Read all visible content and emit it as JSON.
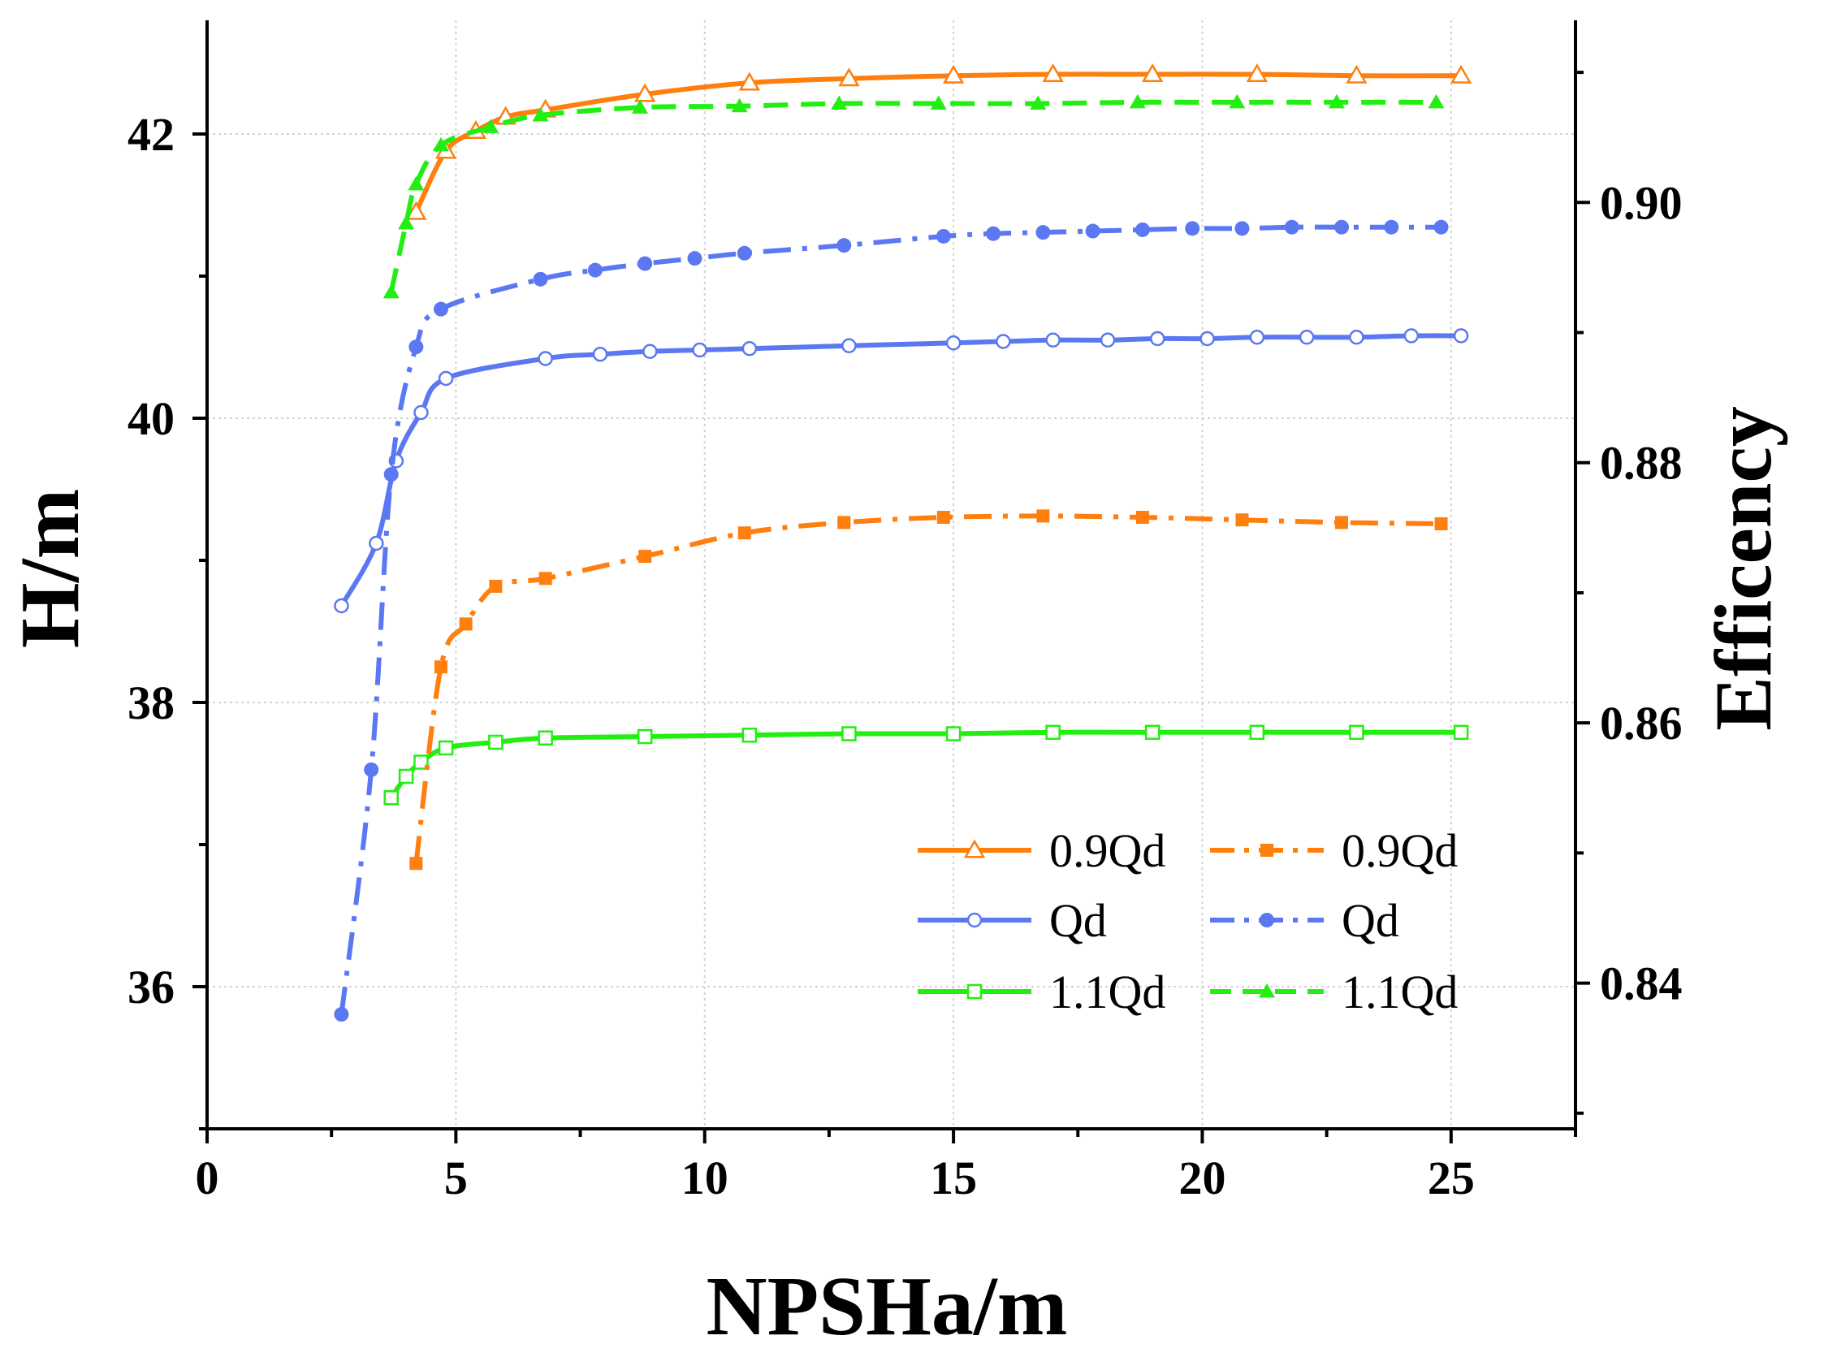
{
  "chart_data": {
    "type": "line",
    "xlabel": "NPSHa/m",
    "ylabel": "H/m",
    "y2label": "Efficency",
    "xlim": [
      0,
      27.5
    ],
    "ylim": [
      35,
      42.8
    ],
    "y2lim": [
      0.8288,
      0.914
    ],
    "xticks": [
      0,
      5,
      10,
      15,
      20,
      25
    ],
    "yticks": [
      36,
      38,
      40,
      42
    ],
    "y2ticks": [
      0.84,
      0.86,
      0.88,
      0.9
    ],
    "ytick_labels": [
      "36",
      "38",
      "40",
      "42"
    ],
    "y2tick_labels": [
      "0.84",
      "0.86",
      "0.88",
      "0.90"
    ],
    "xtick_labels": [
      "0",
      "5",
      "10",
      "15",
      "20",
      "25"
    ],
    "grid": true,
    "legend_position": "bottom-right",
    "series": [
      {
        "name": "0.9Qd",
        "axis": "left",
        "color": "#FF7F0E",
        "dash": "solid",
        "marker": "triangle-open",
        "x": [
          4.2,
          4.8,
          5.4,
          6.0,
          6.8,
          8.8,
          10.9,
          12.9,
          15.0,
          17.0,
          19.0,
          21.1,
          23.1,
          25.2
        ],
        "y": [
          41.45,
          41.88,
          42.02,
          42.12,
          42.17,
          42.28,
          42.36,
          42.39,
          42.41,
          42.42,
          42.42,
          42.42,
          42.41,
          42.41
        ]
      },
      {
        "name": "Qd",
        "axis": "left",
        "color": "#5B78F2",
        "dash": "solid",
        "marker": "circle-open",
        "x": [
          2.7,
          3.4,
          3.8,
          4.3,
          4.8,
          6.8,
          7.9,
          8.9,
          9.9,
          10.9,
          12.9,
          15.0,
          16.0,
          17.0,
          18.1,
          19.1,
          20.1,
          21.1,
          22.1,
          23.1,
          24.2,
          25.2
        ],
        "y": [
          38.68,
          39.12,
          39.7,
          40.04,
          40.28,
          40.42,
          40.45,
          40.47,
          40.48,
          40.49,
          40.51,
          40.53,
          40.54,
          40.55,
          40.55,
          40.56,
          40.56,
          40.57,
          40.57,
          40.57,
          40.58,
          40.58
        ]
      },
      {
        "name": "1.1Qd",
        "axis": "left",
        "color": "#22EE11",
        "dash": "solid",
        "marker": "square-open",
        "x": [
          3.7,
          4.0,
          4.3,
          4.8,
          5.8,
          6.8,
          8.8,
          10.9,
          12.9,
          15.0,
          17.0,
          19.0,
          21.1,
          23.1,
          25.2
        ],
        "y": [
          37.33,
          37.48,
          37.58,
          37.68,
          37.72,
          37.75,
          37.76,
          37.77,
          37.78,
          37.78,
          37.79,
          37.79,
          37.79,
          37.79,
          37.79
        ]
      },
      {
        "name": "0.9Qd",
        "axis": "right",
        "color": "#FF7F0E",
        "dash": "dashdot",
        "marker": "square-filled",
        "x": [
          4.2,
          4.7,
          5.2,
          5.8,
          6.8,
          8.8,
          10.8,
          12.8,
          14.8,
          16.8,
          18.8,
          20.8,
          22.8,
          24.8
        ],
        "y": [
          0.8492,
          0.8643,
          0.8676,
          0.8705,
          0.8711,
          0.8728,
          0.8746,
          0.8754,
          0.8758,
          0.8759,
          0.8758,
          0.8756,
          0.8754,
          0.8753
        ]
      },
      {
        "name": "Qd",
        "axis": "right",
        "color": "#5B78F2",
        "dash": "dashdot",
        "marker": "circle-filled",
        "x": [
          2.7,
          3.3,
          3.7,
          4.2,
          4.7,
          6.7,
          7.8,
          8.8,
          9.8,
          10.8,
          12.8,
          14.8,
          15.8,
          16.8,
          17.8,
          18.8,
          19.8,
          20.8,
          21.8,
          22.8,
          23.8,
          24.8
        ],
        "y": [
          0.8376,
          0.8564,
          0.8791,
          0.8889,
          0.8918,
          0.8941,
          0.8948,
          0.8953,
          0.8957,
          0.8961,
          0.8967,
          0.8974,
          0.8976,
          0.8977,
          0.8978,
          0.8979,
          0.898,
          0.898,
          0.8981,
          0.8981,
          0.8981,
          0.8981
        ]
      },
      {
        "name": "1.1Qd",
        "axis": "right",
        "color": "#22EE11",
        "dash": "dashed",
        "marker": "triangle-filled",
        "x": [
          3.7,
          4.0,
          4.2,
          4.7,
          5.7,
          6.7,
          8.7,
          10.7,
          12.7,
          14.7,
          16.7,
          18.7,
          20.7,
          22.7,
          24.7
        ],
        "y": [
          0.8931,
          0.8984,
          0.9014,
          0.9044,
          0.9058,
          0.9067,
          0.9073,
          0.9074,
          0.9076,
          0.9076,
          0.9076,
          0.9077,
          0.9077,
          0.9077,
          0.9077
        ]
      }
    ]
  }
}
